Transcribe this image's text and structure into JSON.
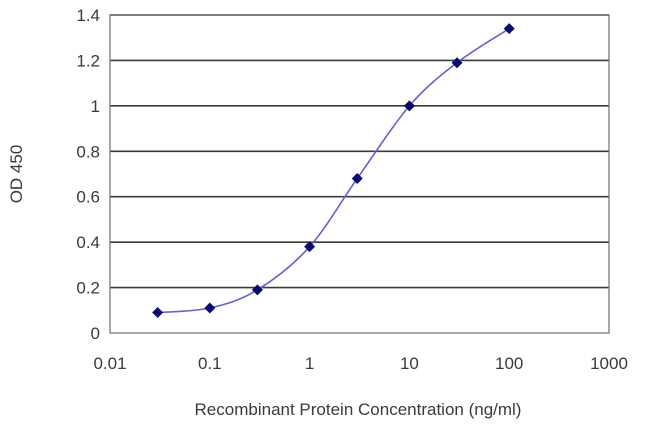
{
  "chart_data": {
    "type": "scatter",
    "title": "",
    "xlabel": "Recombinant Protein Concentration (ng/ml)",
    "ylabel": "OD 450",
    "xscale": "log",
    "xlim": [
      0.01,
      1000
    ],
    "ylim": [
      0,
      1.4
    ],
    "x_ticks": [
      "0.01",
      "0.1",
      "1",
      "10",
      "100",
      "1000"
    ],
    "y_ticks": [
      "0",
      "0.2",
      "0.4",
      "0.6",
      "0.8",
      "1",
      "1.2",
      "1.4"
    ],
    "grid": "horizontal",
    "legend": "none",
    "series": [
      {
        "x": [
          0.03,
          0.1,
          0.3,
          1,
          3,
          10,
          30,
          100
        ],
        "y": [
          0.09,
          0.11,
          0.19,
          0.38,
          0.68,
          1.0,
          1.19,
          1.34
        ],
        "marker": "diamond",
        "fit_curve": "smooth line"
      }
    ],
    "colors": {
      "marker": "#0a0a6e",
      "curve": "#6464c8",
      "gridline": "#3b3b3b",
      "text": "#3a3a3a"
    }
  }
}
